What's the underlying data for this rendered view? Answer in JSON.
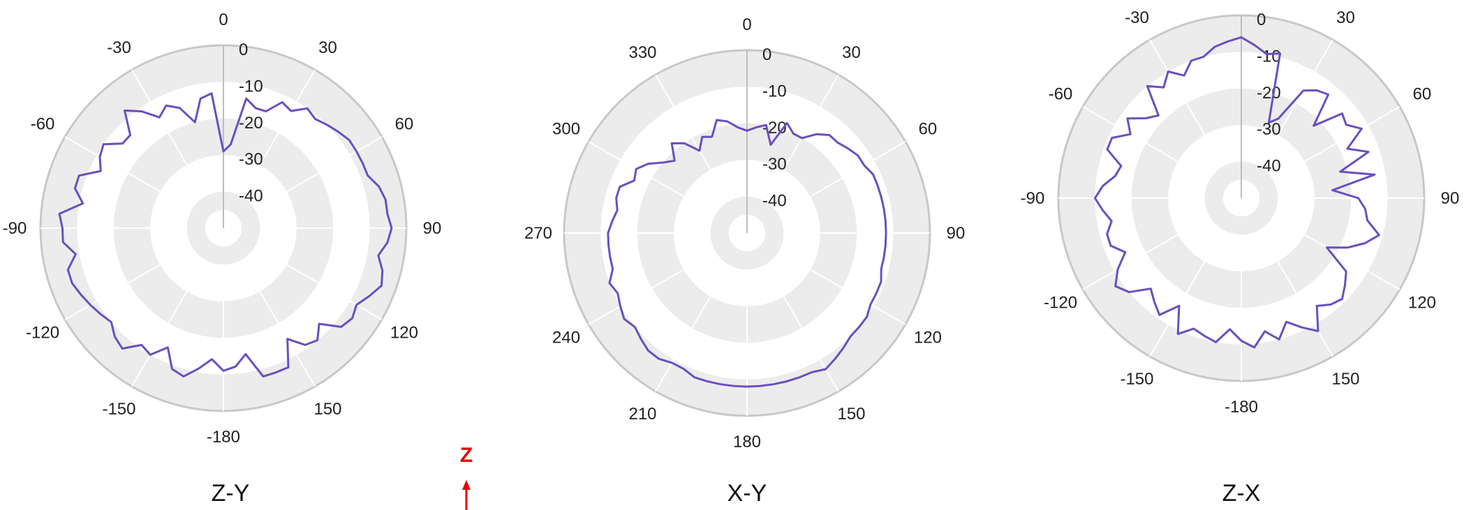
{
  "chart_data": [
    {
      "type": "polar-line",
      "title": "Z-Y",
      "theta_labels": [
        "0",
        "30",
        "60",
        "90",
        "120",
        "150",
        "-180",
        "-150",
        "-120",
        "-90",
        "-60",
        "-30"
      ],
      "r_ticks": [
        "0",
        "-10",
        "-20",
        "-30",
        "-40"
      ],
      "rlim": [
        -50,
        0
      ],
      "series_color": "#6a4fc0",
      "theta_deg": [
        0,
        5,
        10,
        15,
        20,
        25,
        30,
        35,
        40,
        45,
        50,
        55,
        60,
        65,
        70,
        75,
        80,
        85,
        90,
        95,
        100,
        105,
        110,
        115,
        120,
        125,
        130,
        135,
        140,
        145,
        150,
        155,
        160,
        165,
        170,
        175,
        180,
        185,
        190,
        195,
        200,
        205,
        210,
        215,
        220,
        225,
        230,
        235,
        240,
        245,
        250,
        255,
        260,
        265,
        270,
        275,
        280,
        285,
        290,
        295,
        300,
        305,
        310,
        315,
        320,
        325,
        330,
        335,
        340,
        345,
        350,
        355
      ],
      "r_db": [
        -29,
        -27,
        -14,
        -16,
        -16,
        -12,
        -13,
        -10,
        -11,
        -10,
        -9,
        -8,
        -8,
        -8,
        -8,
        -6,
        -5,
        -5,
        -4,
        -5,
        -7,
        -5,
        -4,
        -6,
        -8,
        -7,
        -8,
        -13,
        -10,
        -11,
        -15,
        -8,
        -8,
        -8,
        -15,
        -12,
        -11,
        -14,
        -11,
        -8,
        -9,
        -14,
        -10,
        -11,
        -7,
        -8,
        -10,
        -9,
        -8,
        -7,
        -6,
        -6,
        -9,
        -6,
        -6,
        -5,
        -11,
        -8,
        -8,
        -13,
        -11,
        -10,
        -14,
        -14,
        -8,
        -11,
        -15,
        -13,
        -15,
        -20,
        -14,
        -13
      ]
    },
    {
      "type": "polar-line",
      "title": "X-Y",
      "theta_labels": [
        "0",
        "30",
        "60",
        "90",
        "120",
        "150",
        "180",
        "210",
        "240",
        "270",
        "300",
        "330"
      ],
      "r_ticks": [
        "0",
        "-10",
        "-20",
        "-30",
        "-40"
      ],
      "rlim": [
        -50,
        0
      ],
      "series_color": "#6a4fc0",
      "theta_deg": [
        0,
        5,
        10,
        15,
        20,
        25,
        30,
        35,
        40,
        45,
        50,
        55,
        60,
        65,
        70,
        75,
        80,
        85,
        90,
        95,
        100,
        105,
        110,
        115,
        120,
        125,
        130,
        135,
        140,
        145,
        150,
        155,
        160,
        165,
        170,
        175,
        180,
        185,
        190,
        195,
        200,
        205,
        210,
        215,
        220,
        225,
        230,
        235,
        240,
        245,
        250,
        255,
        260,
        265,
        270,
        275,
        280,
        285,
        290,
        295,
        300,
        305,
        310,
        315,
        320,
        325,
        330,
        335,
        340,
        345,
        350,
        355
      ],
      "r_db": [
        -22,
        -21,
        -20,
        -25,
        -18,
        -20,
        -20,
        -17,
        -15,
        -15,
        -14,
        -13,
        -13,
        -12,
        -12,
        -12,
        -12,
        -12,
        -12,
        -12,
        -12,
        -12,
        -11,
        -11,
        -11,
        -10,
        -10,
        -10,
        -9,
        -8,
        -7,
        -8,
        -8,
        -8,
        -8,
        -8,
        -8,
        -8,
        -8,
        -8,
        -8,
        -9,
        -9,
        -8,
        -8,
        -9,
        -10,
        -9,
        -10,
        -11,
        -10,
        -12,
        -12,
        -12,
        -12,
        -13,
        -14,
        -13,
        -13,
        -16,
        -15,
        -17,
        -20,
        -22,
        -18,
        -20,
        -24,
        -21,
        -22,
        -18,
        -19,
        -21
      ]
    },
    {
      "type": "polar-line",
      "title": "Z-X",
      "theta_labels": [
        "0",
        "30",
        "60",
        "90",
        "120",
        "150",
        "-180",
        "-150",
        "-120",
        "-90",
        "-60",
        "-30"
      ],
      "r_ticks": [
        "0",
        "-10",
        "-20",
        "-30",
        "-40"
      ],
      "rlim": [
        -50,
        0
      ],
      "series_color": "#6a4fc0",
      "theta_deg": [
        0,
        5,
        10,
        15,
        20,
        25,
        30,
        35,
        40,
        45,
        50,
        55,
        60,
        65,
        70,
        75,
        80,
        85,
        90,
        95,
        100,
        105,
        110,
        115,
        120,
        125,
        130,
        135,
        140,
        145,
        150,
        155,
        160,
        165,
        170,
        175,
        180,
        185,
        190,
        195,
        200,
        205,
        210,
        215,
        220,
        225,
        230,
        235,
        240,
        245,
        250,
        255,
        260,
        265,
        270,
        275,
        280,
        285,
        290,
        295,
        300,
        305,
        310,
        315,
        320,
        325,
        330,
        335,
        340,
        345,
        350,
        355
      ],
      "r_db": [
        -6,
        -8,
        -10,
        -9,
        -28,
        -26,
        -16,
        -14,
        -13,
        -22,
        -14,
        -15,
        -12,
        -18,
        -13,
        -22,
        -13,
        -25,
        -18,
        -16,
        -15,
        -11,
        -14,
        -18,
        -23,
        -15,
        -13,
        -11,
        -12,
        -14,
        -8,
        -11,
        -14,
        -10,
        -13,
        -9,
        -11,
        -14,
        -10,
        -11,
        -12,
        -9,
        -16,
        -11,
        -13,
        -15,
        -10,
        -8,
        -11,
        -15,
        -12,
        -12,
        -14,
        -12,
        -10,
        -12,
        -15,
        -16,
        -11,
        -11,
        -15,
        -12,
        -16,
        -18,
        -10,
        -13,
        -10,
        -13,
        -10,
        -10,
        -8,
        -7
      ]
    }
  ],
  "axis_indicator": {
    "letter": "Z",
    "color": "#e60000"
  }
}
